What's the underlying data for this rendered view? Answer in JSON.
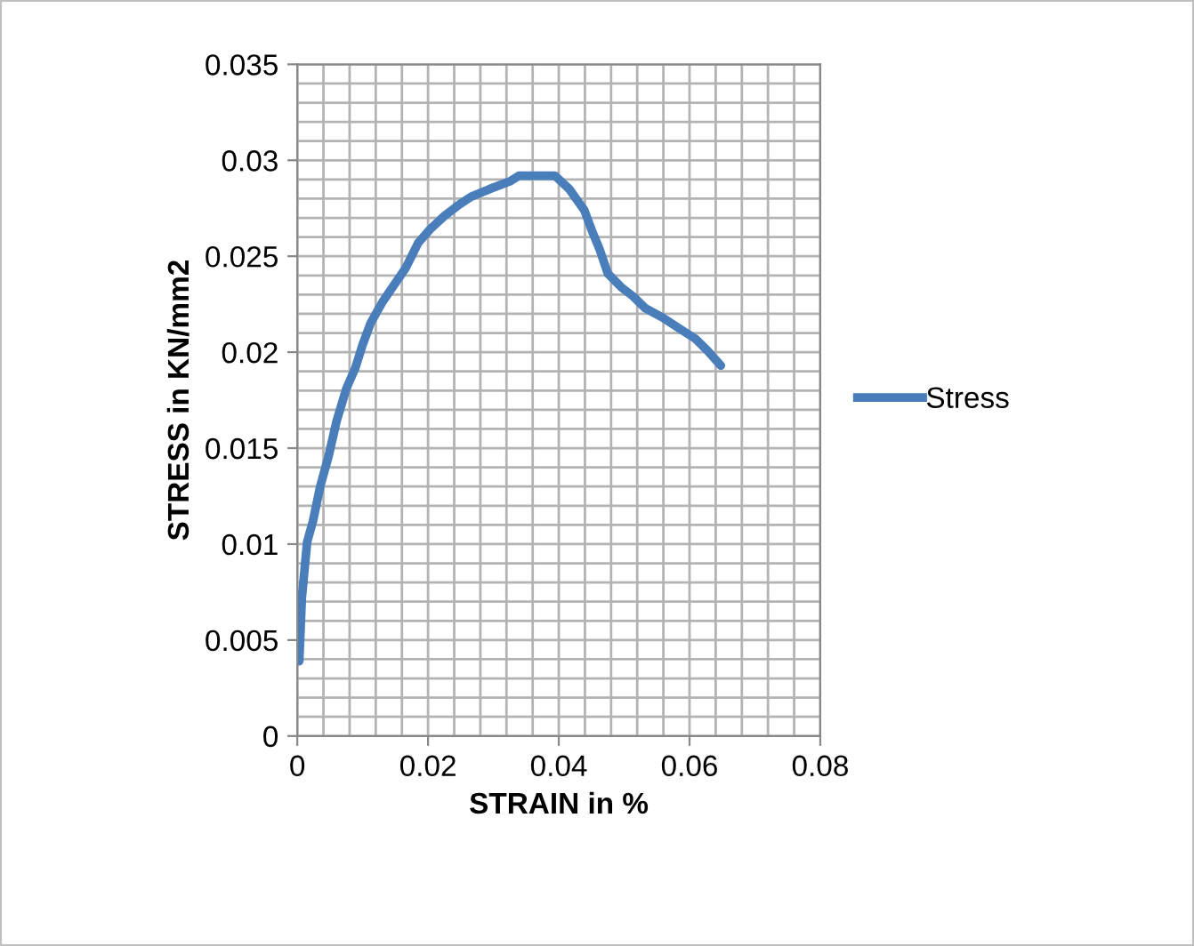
{
  "chart_data": {
    "type": "line",
    "xlabel": "STRAIN in %",
    "ylabel": "STRESS in KN/mm2",
    "xlim": [
      0,
      0.08
    ],
    "ylim": [
      0,
      0.035
    ],
    "xticks": [
      0,
      0.02,
      0.04,
      0.06,
      0.08
    ],
    "yticks": [
      0,
      0.005,
      0.01,
      0.015,
      0.02,
      0.025,
      0.03,
      0.035
    ],
    "grid": true,
    "legend": "right",
    "marker": "none",
    "line_style": "solid",
    "series": [
      {
        "name": "Stress",
        "color": "#4a7ebb",
        "x": [
          0.0003,
          0.0007,
          0.0015,
          0.0024,
          0.0035,
          0.0048,
          0.006,
          0.0075,
          0.0089,
          0.01,
          0.0112,
          0.013,
          0.0148,
          0.0166,
          0.0185,
          0.0203,
          0.0225,
          0.0248,
          0.0266,
          0.0294,
          0.0325,
          0.0339,
          0.0394,
          0.0416,
          0.0439,
          0.0451,
          0.0462,
          0.0475,
          0.0495,
          0.0514,
          0.0532,
          0.0559,
          0.0586,
          0.0609,
          0.0627,
          0.0648
        ],
        "values": [
          0.0039,
          0.0072,
          0.0101,
          0.0112,
          0.013,
          0.0146,
          0.0164,
          0.0181,
          0.0192,
          0.0204,
          0.0215,
          0.0226,
          0.0235,
          0.0244,
          0.0257,
          0.0264,
          0.0271,
          0.0277,
          0.0281,
          0.0285,
          0.0289,
          0.0292,
          0.0292,
          0.0285,
          0.0274,
          0.0263,
          0.0254,
          0.0241,
          0.0234,
          0.0229,
          0.0223,
          0.0218,
          0.0212,
          0.0207,
          0.0201,
          0.0193
        ]
      }
    ]
  }
}
